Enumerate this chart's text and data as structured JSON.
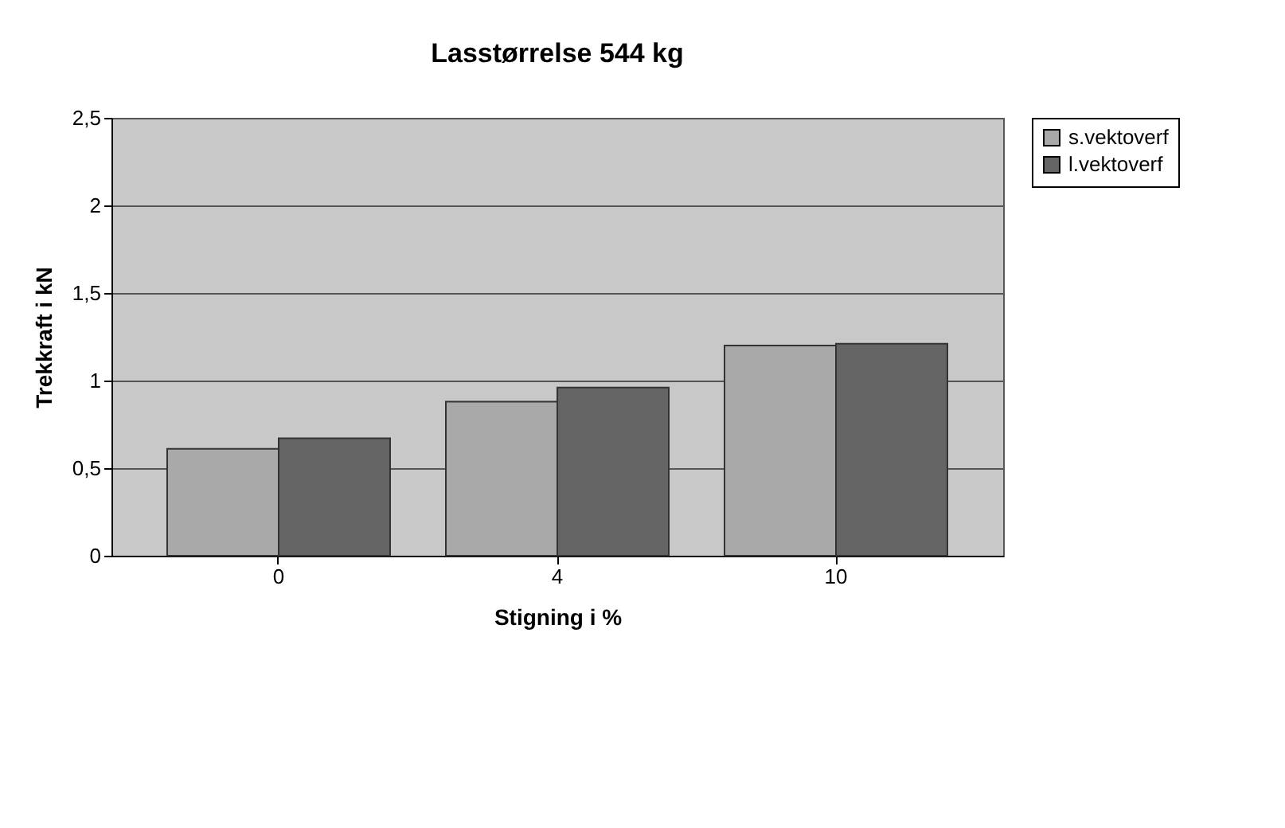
{
  "chart_data": {
    "type": "bar",
    "title": "Lasstørrelse 544 kg",
    "xlabel": "Stigning i %",
    "ylabel": "Trekkraft i kN",
    "categories": [
      "0",
      "4",
      "10"
    ],
    "series": [
      {
        "name": "s.vektoverf",
        "color": "#a9a9a9",
        "values": [
          0.61,
          0.88,
          1.2
        ]
      },
      {
        "name": "l.vektoverf",
        "color": "#646464",
        "values": [
          0.67,
          0.96,
          1.21
        ]
      }
    ],
    "ylim": [
      0,
      2.5
    ],
    "yticks": [
      0,
      {
        "value": 0.5,
        "label": "0,5"
      },
      1,
      {
        "value": 1.5,
        "label": "1,5"
      },
      2,
      {
        "value": 2.5,
        "label": "2,5"
      }
    ],
    "grid": "y",
    "legend": "right"
  }
}
